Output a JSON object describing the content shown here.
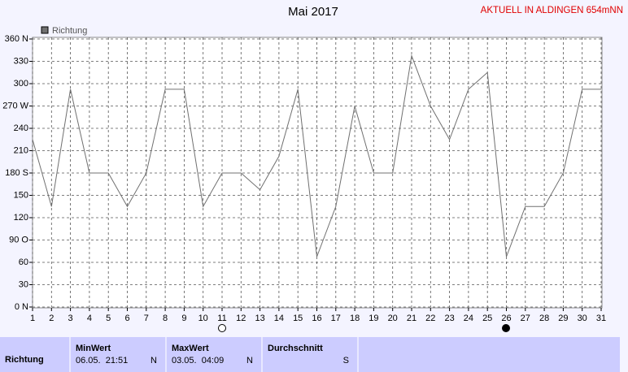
{
  "chart_data": {
    "type": "line",
    "title": "Mai 2017",
    "annotation": "AKTUELL IN ALDINGEN 654mNN",
    "x": [
      1,
      2,
      3,
      4,
      5,
      6,
      7,
      8,
      9,
      10,
      11,
      12,
      13,
      14,
      15,
      16,
      17,
      18,
      19,
      20,
      21,
      22,
      23,
      24,
      25,
      26,
      27,
      28,
      29,
      30,
      31
    ],
    "series": [
      {
        "name": "Richtung",
        "color": "#707070",
        "values": [
          225,
          135,
          292.5,
          180,
          180,
          135,
          180,
          292.5,
          292.5,
          135,
          180,
          180,
          157.5,
          202.5,
          292.5,
          67.5,
          135,
          270,
          180,
          180,
          337.5,
          270,
          225,
          292.5,
          315,
          67.5,
          135,
          135,
          180,
          292.5,
          292.5
        ]
      }
    ],
    "xlim": [
      1,
      31
    ],
    "xticks": [
      1,
      2,
      3,
      4,
      5,
      6,
      7,
      8,
      9,
      10,
      11,
      12,
      13,
      14,
      15,
      16,
      17,
      18,
      19,
      20,
      21,
      22,
      23,
      24,
      25,
      26,
      27,
      28,
      29,
      30,
      31
    ],
    "ylim": [
      0,
      360
    ],
    "yticks": [
      {
        "value": 0,
        "label": "0 N"
      },
      30,
      60,
      {
        "value": 90,
        "label": "90 O"
      },
      120,
      150,
      {
        "value": 180,
        "label": "180 S"
      },
      210,
      240,
      {
        "value": 270,
        "label": "270 W"
      },
      300,
      330,
      {
        "value": 360,
        "label": "360 N"
      }
    ],
    "grid": true
  },
  "table": {
    "row_label": "Richtung",
    "columns": [
      {
        "header": "MinWert",
        "time": "06.05.  21:51",
        "value": "N"
      },
      {
        "header": "MaxWert",
        "time": "03.05.  04:09",
        "value": "N"
      },
      {
        "header": "Durchschnitt",
        "value": "S"
      }
    ]
  }
}
